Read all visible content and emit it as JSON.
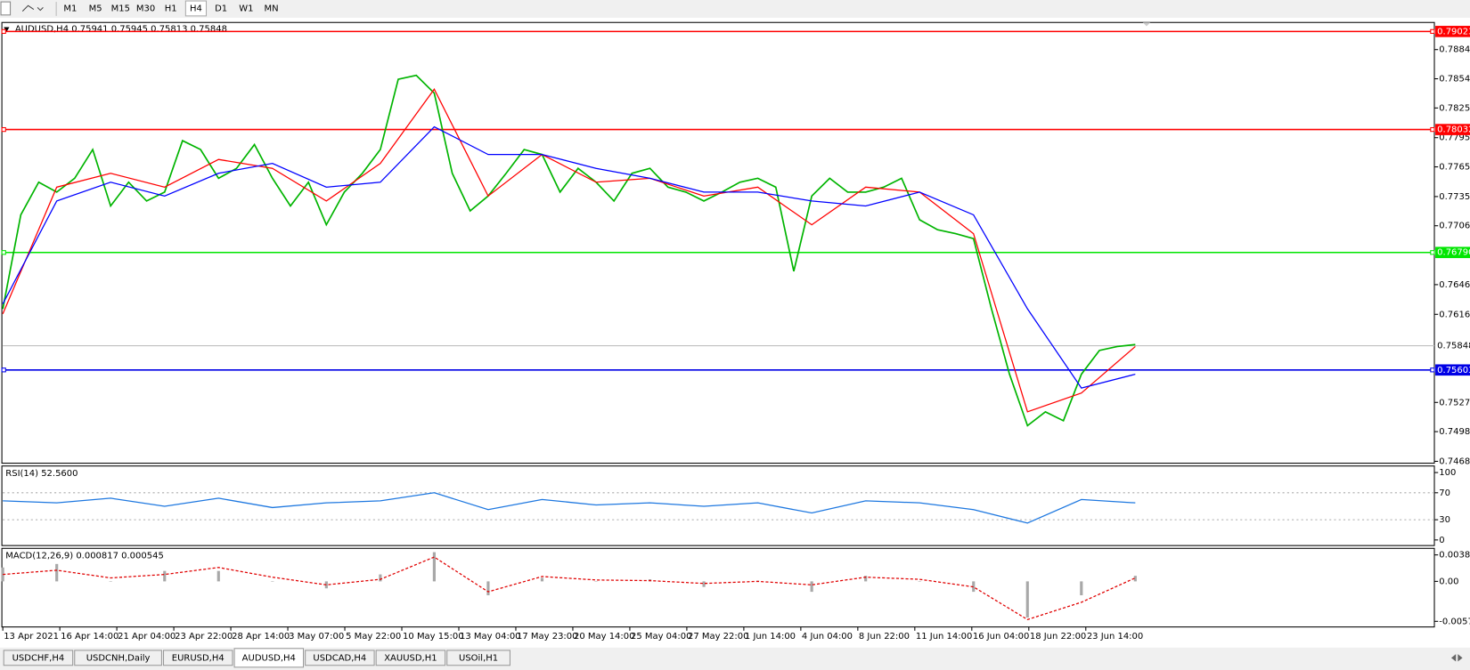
{
  "toolbar": {
    "timeframes": [
      "M1",
      "M5",
      "M15",
      "M30",
      "H1",
      "H4",
      "D1",
      "W1",
      "MN"
    ],
    "active_index": 5
  },
  "chart_data": [
    {
      "type": "line",
      "title": "AUDUSD,H4  0.75941 0.75945 0.75813 0.75848",
      "ylim": [
        0.74661,
        0.79114
      ],
      "yticks": [
        {
          "value": 0.7884,
          "label": "0.78840"
        },
        0.78545,
        {
          "value": 0.7825,
          "label": "0.78250"
        },
        {
          "value": 0.7795,
          "label": "0.77950"
        },
        0.77655,
        0.77355,
        {
          "value": 0.7706,
          "label": "0.77060"
        },
        0.76465,
        0.76165,
        0.75275,
        {
          "value": 0.7498,
          "label": "0.74980"
        },
        {
          "value": 0.7468,
          "label": "0.74680"
        }
      ],
      "levels": [
        {
          "value": 0.79023,
          "label": "0.79023",
          "color": "#ff0000"
        },
        {
          "value": 0.78032,
          "label": "0.78032",
          "color": "#ff0000"
        },
        {
          "value": 0.7679,
          "label": "0.76790",
          "color": "#00e600"
        },
        {
          "value": 0.75603,
          "label": "0.75603",
          "color": "#0000e6"
        }
      ],
      "current_price": {
        "value": 0.75848,
        "label": "0.75848",
        "color": "#c0c0c0"
      },
      "series": [
        {
          "color": "#00b400",
          "values": [
            0.7622,
            0.7717,
            0.775,
            0.774,
            0.7754,
            0.7783,
            0.7726,
            0.775,
            0.7731,
            0.774,
            0.7792,
            0.7783,
            0.7754,
            0.7764,
            0.7788,
            0.7754,
            0.7726,
            0.775,
            0.7707,
            0.774,
            0.7759,
            0.7783,
            0.7854,
            0.7858,
            0.784,
            0.7759,
            0.7721,
            0.7736,
            0.7759,
            0.7783,
            0.7778,
            0.774,
            0.7764,
            0.775,
            0.7731,
            0.7759,
            0.7764,
            0.7745,
            0.774,
            0.7731,
            0.774,
            0.775,
            0.7754,
            0.7745,
            0.766,
            0.7736,
            0.7754,
            0.774,
            0.774,
            0.7745,
            0.7754,
            0.7712,
            0.7702,
            0.7698,
            0.7693,
            0.7622,
            0.7556,
            0.7504,
            0.7518,
            0.7509,
            0.7556,
            0.758,
            0.7584,
            0.7586
          ]
        },
        {
          "color": "#ff0000",
          "values": [
            0.7617,
            0.7745,
            0.7759,
            0.7745,
            0.7773,
            0.7764,
            0.7731,
            0.7769,
            0.7844,
            0.7736,
            0.7778,
            0.775,
            0.7754,
            0.7736,
            0.7745,
            0.7707,
            0.7745,
            0.774,
            0.7698,
            0.7518,
            0.7537,
            0.7584
          ]
        },
        {
          "color": "#0000ff",
          "values": [
            0.7627,
            0.7731,
            0.775,
            0.7736,
            0.7759,
            0.7769,
            0.7745,
            0.775,
            0.7806,
            0.7778,
            0.7778,
            0.7764,
            0.7754,
            0.774,
            0.774,
            0.7731,
            0.7726,
            0.774,
            0.7717,
            0.7622,
            0.7542,
            0.7556
          ]
        }
      ]
    },
    {
      "type": "line",
      "title": "RSI(14) 52.5600",
      "ylim": [
        -8.3,
        109.7
      ],
      "yticks": [
        100,
        70,
        30,
        0
      ],
      "series": [
        {
          "color": "#1e78e0",
          "values": [
            58,
            55,
            62,
            50,
            62,
            48,
            55,
            58,
            70,
            45,
            60,
            52,
            55,
            50,
            55,
            40,
            58,
            55,
            45,
            25,
            60,
            55
          ]
        }
      ]
    },
    {
      "type": "macd",
      "title": "MACD(12,26,9) 0.000817 0.000545",
      "ylim": [
        -0.006558,
        0.00475
      ],
      "yticks": [
        0.003808,
        {
          "value": 0,
          "label": "0.00"
        },
        -0.00575
      ],
      "histogram": {
        "color": "#a8a8a8",
        "values": [
          0.002,
          0.0025,
          0.0,
          0.0015,
          0.0015,
          0.0,
          -0.001,
          0.001,
          0.0042,
          -0.002,
          0.0005,
          0.0,
          0.0003,
          -0.0008,
          0.0001,
          -0.0015,
          0.0008,
          0.0,
          -0.0015,
          -0.0052,
          -0.002,
          0.0008
        ]
      },
      "signal": {
        "color": "#e00000",
        "values": [
          0.001,
          0.0016,
          0.0005,
          0.001,
          0.002,
          0.0006,
          -0.0005,
          0.0003,
          0.0035,
          -0.0015,
          0.0007,
          0.0002,
          0.0001,
          -0.0003,
          0.0,
          -0.0005,
          0.0006,
          0.0003,
          -0.0008,
          -0.0055,
          -0.003,
          0.0005
        ]
      }
    }
  ],
  "time_axis": [
    "13 Apr 2021",
    "16 Apr 14:00",
    "21 Apr 04:00",
    "23 Apr 22:00",
    "28 Apr 14:00",
    "3 May 07:00",
    "5 May 22:00",
    "10 May 15:00",
    "13 May 04:00",
    "17 May 23:00",
    "20 May 14:00",
    "25 May 04:00",
    "27 May 22:00",
    "1 Jun 14:00",
    "4 Jun 04:00",
    "8 Jun 22:00",
    "11 Jun 14:00",
    "16 Jun 04:00",
    "18 Jun 22:00",
    "23 Jun 14:00"
  ],
  "tabs": {
    "items": [
      "USDCHF,H4",
      "USDCNH,Daily",
      "EURUSD,H4",
      "AUDUSD,H4",
      "USDCAD,H4",
      "XAUUSD,H1",
      "USOil,H1"
    ],
    "active_index": 3
  }
}
